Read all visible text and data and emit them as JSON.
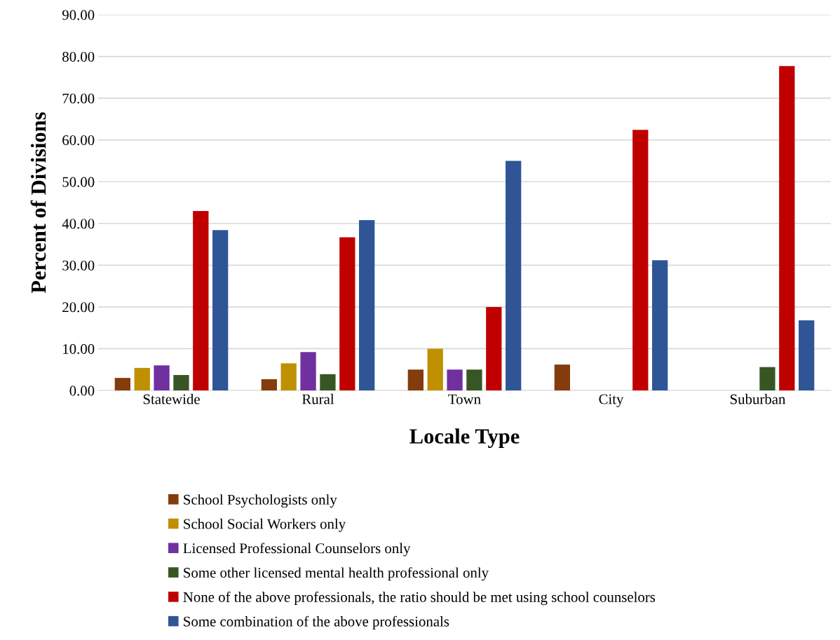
{
  "chart_data": {
    "type": "bar",
    "xlabel": "Locale Type",
    "ylabel": "Percent of Divisions",
    "categories": [
      "Statewide",
      "Rural",
      "Town",
      "City",
      "Suburban"
    ],
    "series": [
      {
        "name": "School Psychologists only",
        "color": "#843c0c",
        "values": [
          3.0,
          2.7,
          5.0,
          6.2,
          0
        ]
      },
      {
        "name": "School Social Workers only",
        "color": "#bf9000",
        "values": [
          5.4,
          6.5,
          10.0,
          0,
          0
        ]
      },
      {
        "name": "Licensed Professional Counselors only",
        "color": "#7030a0",
        "values": [
          6.0,
          9.2,
          5.0,
          0,
          0
        ]
      },
      {
        "name": "Some other licensed mental health professional only",
        "color": "#375623",
        "values": [
          3.7,
          3.9,
          5.0,
          0,
          5.6
        ]
      },
      {
        "name": "None of the above professionals, the ratio should be met using school counselors",
        "color": "#c00000",
        "values": [
          43.0,
          36.7,
          20.0,
          62.4,
          77.7
        ]
      },
      {
        "name": "Some combination of the above professionals",
        "color": "#2f5597",
        "values": [
          38.4,
          40.8,
          55.0,
          31.2,
          16.8
        ]
      }
    ],
    "ylim": [
      0,
      90
    ],
    "yticks": [
      {
        "value": 0,
        "label": "0.00"
      },
      {
        "value": 10,
        "label": "10.00"
      },
      {
        "value": 20,
        "label": "20.00"
      },
      {
        "value": 30,
        "label": "30.00"
      },
      {
        "value": 40,
        "label": "40.00"
      },
      {
        "value": 50,
        "label": "50.00"
      },
      {
        "value": 60,
        "label": "60.00"
      },
      {
        "value": 70,
        "label": "70.00"
      },
      {
        "value": 80,
        "label": "80.00"
      },
      {
        "value": 90,
        "label": "90.00"
      }
    ],
    "grid": "y",
    "legend": "bottom"
  }
}
